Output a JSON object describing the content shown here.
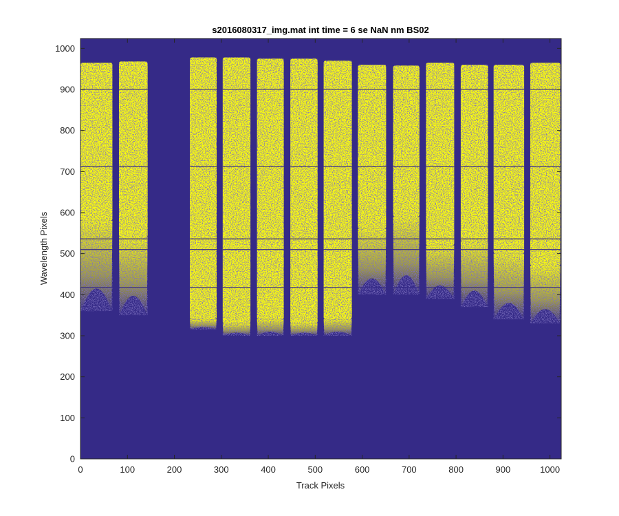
{
  "chart_data": {
    "type": "heatmap",
    "title": "s2016080317_img.mat int time = 6 se  NaN nm BS02",
    "xlabel": "Track Pixels",
    "ylabel": "Wavelength Pixels",
    "xlim": [
      0,
      1024
    ],
    "ylim": [
      0,
      1024
    ],
    "xticks": [
      "0",
      "100",
      "200",
      "300",
      "400",
      "500",
      "600",
      "700",
      "800",
      "900",
      "1000"
    ],
    "yticks": [
      "0",
      "100",
      "200",
      "300",
      "400",
      "500",
      "600",
      "700",
      "800",
      "900",
      "1000"
    ],
    "grid": false,
    "background_color": "#352a87",
    "signal_color": "#f9fb0e",
    "bands": [
      {
        "x0": 0,
        "x1": 68,
        "y_top": 965,
        "solid_bottom": 580,
        "sparse_bottom": 360
      },
      {
        "x0": 82,
        "x1": 143,
        "y_top": 968,
        "solid_bottom": 540,
        "sparse_bottom": 350
      },
      {
        "x0": 233,
        "x1": 290,
        "y_top": 978,
        "solid_bottom": 340,
        "sparse_bottom": 315
      },
      {
        "x0": 303,
        "x1": 362,
        "y_top": 978,
        "solid_bottom": 330,
        "sparse_bottom": 300
      },
      {
        "x0": 376,
        "x1": 433,
        "y_top": 975,
        "solid_bottom": 340,
        "sparse_bottom": 300
      },
      {
        "x0": 447,
        "x1": 505,
        "y_top": 975,
        "solid_bottom": 330,
        "sparse_bottom": 300
      },
      {
        "x0": 518,
        "x1": 578,
        "y_top": 970,
        "solid_bottom": 340,
        "sparse_bottom": 300
      },
      {
        "x0": 591,
        "x1": 651,
        "y_top": 960,
        "solid_bottom": 560,
        "sparse_bottom": 400
      },
      {
        "x0": 666,
        "x1": 722,
        "y_top": 958,
        "solid_bottom": 590,
        "sparse_bottom": 400
      },
      {
        "x0": 736,
        "x1": 796,
        "y_top": 965,
        "solid_bottom": 520,
        "sparse_bottom": 390
      },
      {
        "x0": 810,
        "x1": 868,
        "y_top": 960,
        "solid_bottom": 530,
        "sparse_bottom": 370
      },
      {
        "x0": 880,
        "x1": 945,
        "y_top": 960,
        "solid_bottom": 500,
        "sparse_bottom": 340
      },
      {
        "x0": 958,
        "x1": 1022,
        "y_top": 965,
        "solid_bottom": 470,
        "sparse_bottom": 330
      }
    ],
    "dark_rows": [
      900,
      712,
      536,
      510,
      418
    ]
  }
}
